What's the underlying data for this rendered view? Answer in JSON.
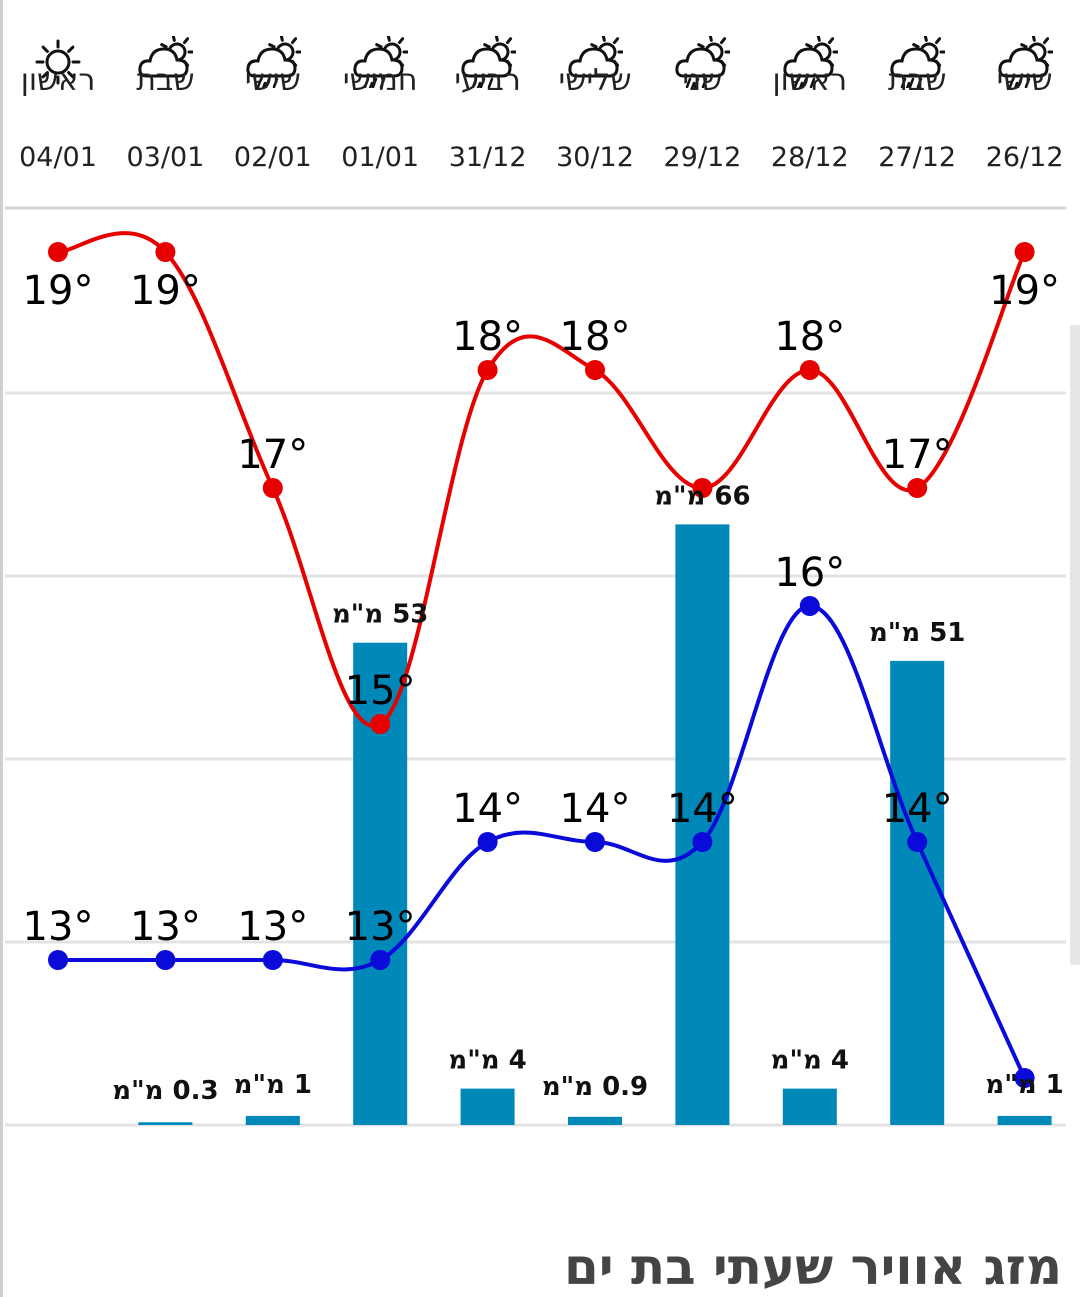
{
  "page_title": "מזג אוויר שעתי בת ים",
  "days": [
    {
      "name": "ראשון",
      "date": "04/01",
      "icon": "sun-icon"
    },
    {
      "name": "שבת",
      "date": "03/01",
      "icon": "partly-cloudy-icon"
    },
    {
      "name": "שישי",
      "date": "02/01",
      "icon": "cloud-rain-sun-icon"
    },
    {
      "name": "חמישי",
      "date": "01/01",
      "icon": "cloud-rain-sun-icon"
    },
    {
      "name": "רביעי",
      "date": "31/12",
      "icon": "cloud-rain-sun-icon"
    },
    {
      "name": "שלישי",
      "date": "30/12",
      "icon": "partly-cloudy-icon"
    },
    {
      "name": "שני",
      "date": "29/12",
      "icon": "cloud-rain-sun-icon"
    },
    {
      "name": "ראשון",
      "date": "28/12",
      "icon": "cloud-rain-sun-icon"
    },
    {
      "name": "שבת",
      "date": "27/12",
      "icon": "cloud-rain-sun-icon"
    },
    {
      "name": "שישי",
      "date": "26/12",
      "icon": "cloud-rain-sun-icon"
    }
  ],
  "chart_data": {
    "type": "line",
    "categories": [
      "04/01",
      "03/01",
      "02/01",
      "01/01",
      "31/12",
      "30/12",
      "29/12",
      "28/12",
      "27/12",
      "26/12"
    ],
    "series": [
      {
        "values": [
          19,
          19,
          17,
          15,
          18,
          18,
          17,
          18,
          17,
          19
        ],
        "color": "#e60000",
        "labels": [
          "19°",
          "19°",
          "17°",
          "15°",
          "18°",
          "18°",
          "",
          "18°",
          "17°",
          "19°"
        ]
      },
      {
        "values": [
          13,
          13,
          13,
          13,
          14,
          14,
          14,
          16,
          14,
          12
        ],
        "color": "#0a0ad9",
        "labels": [
          "13°",
          "13°",
          "13°",
          "13°",
          "14°",
          "14°",
          "14°",
          "16°",
          "14°",
          ""
        ]
      }
    ],
    "bars": {
      "values": [
        0,
        0.3,
        1,
        53,
        4,
        0.9,
        66,
        4,
        51,
        1
      ],
      "labels": [
        "",
        "0.3 מ\"מ",
        "1 מ\"מ",
        "53 מ\"מ",
        "4 מ\"מ",
        "0.9 מ\"מ",
        "66 מ\"מ",
        "4 מ\"מ",
        "51 מ\"מ",
        "1 מ\"מ"
      ],
      "color": "#0088b8"
    },
    "grid": true
  }
}
